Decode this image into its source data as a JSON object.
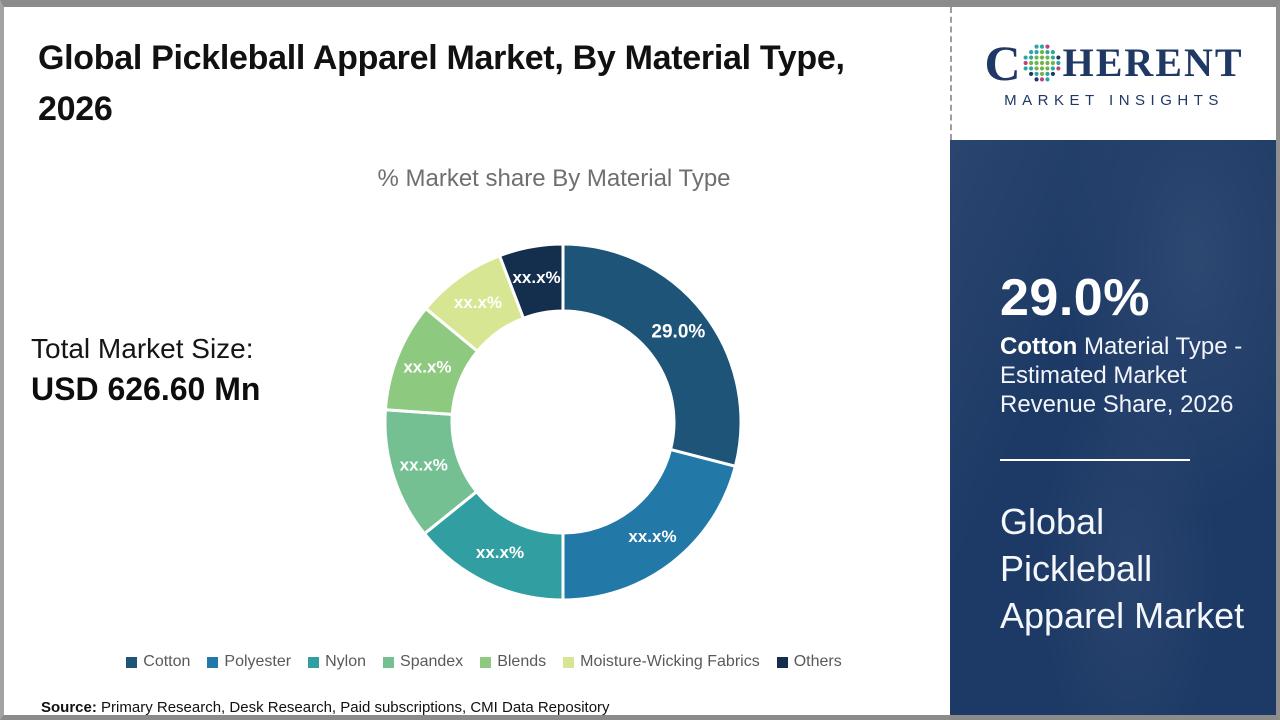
{
  "page_title": "Global Pickleball Apparel Market, By Material Type, 2026",
  "total_market": {
    "label": "Total Market Size:",
    "value": "USD 626.60 Mn"
  },
  "source": {
    "label": "Source:",
    "text": " Primary Research, Desk Research, Paid subscriptions, CMI Data Repository"
  },
  "logo": {
    "letter": "C",
    "rest": "HERENT",
    "tagline": "MARKET INSIGHTS",
    "navy": "#1f3864",
    "globe_colors": {
      "teal": "#2ba7a0",
      "green": "#6fb44a",
      "magenta": "#c2417e",
      "navy": "#1f3864"
    }
  },
  "sidebar": {
    "stat_value": "29.0%",
    "stat_highlight": "Cotton",
    "stat_text": " Material Type - Estimated Market Revenue Share, 2026",
    "panel_title": "Global Pickleball Apparel Market",
    "panel_color": "#1d3a66"
  },
  "chart_data": {
    "type": "pie",
    "donut": true,
    "title": "% Market share By Material Type",
    "categories": [
      "Cotton",
      "Polyester",
      "Nylon",
      "Spandex",
      "Blends",
      "Moisture-Wicking Fabrics",
      "Others"
    ],
    "values": [
      29.0,
      21.0,
      14.2,
      11.9,
      9.9,
      8.2,
      5.8
    ],
    "slice_labels": [
      "29.0%",
      "xx.x%",
      "xx.x%",
      "xx.x%",
      "xx.x%",
      "xx.x%",
      "xx.x%"
    ],
    "colors": [
      "#1d5478",
      "#2278a7",
      "#319fa1",
      "#74c093",
      "#8ec980",
      "#d7e692",
      "#142f4e"
    ],
    "label_color": "#ffffff",
    "separator_color": "#ffffff",
    "legend_position": "bottom",
    "legend_text_color": "#595959",
    "start_angle_deg": 0,
    "direction": "clockwise"
  }
}
